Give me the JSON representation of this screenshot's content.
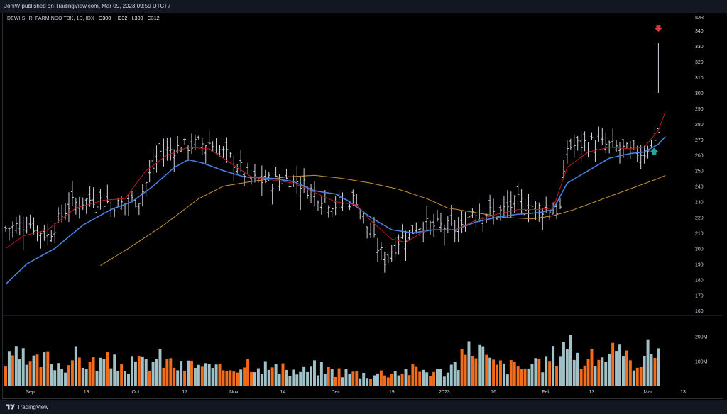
{
  "publish_line": "JoniW published on TradingView.com, Mar 09, 2023 09:59 UTC+7",
  "symbol_info": {
    "name": "DEWI SHRI FARMINDO TBK, 1D, IDX",
    "o_label": "O",
    "o_value": "300",
    "h_label": "H",
    "h_value": "332",
    "l_label": "L",
    "l_value": "300",
    "c_label": "C",
    "c_value": "312"
  },
  "footer_brand": "TradingView",
  "colors": {
    "candle": "#d1d4dc",
    "ma_red": "#b71c1c",
    "ma_blue": "#4a7fe0",
    "ma_orange": "#c59445",
    "vol_up": "#9fc1c7",
    "vol_down": "#f26c1c",
    "arrow_down": "#e5333f",
    "arrow_up": "#26a69a"
  },
  "chart_data": {
    "type": "bar",
    "subtype": "ohlc-bar-with-moving-averages-and-volume",
    "currency": "IDR",
    "price_axis": {
      "unit": "IDR",
      "ticks": [
        160,
        170,
        180,
        190,
        200,
        210,
        220,
        230,
        240,
        250,
        260,
        270,
        280,
        290,
        300,
        310,
        320,
        330,
        340
      ],
      "range": [
        156,
        346
      ]
    },
    "volume_axis": {
      "ticks": [
        "100M",
        "200M"
      ],
      "tick_values": [
        100,
        200
      ],
      "unit_millions": true,
      "range": [
        0,
        280
      ]
    },
    "x_axis_labels": [
      "Sep",
      "19",
      "Oct",
      "17",
      "Nov",
      "14",
      "Dec",
      "19",
      "2023",
      "16",
      "Feb",
      "13",
      "Mar",
      "13"
    ],
    "x_label_bar_index": [
      7,
      23,
      37,
      51,
      65,
      79,
      94,
      110,
      125,
      139,
      154,
      167,
      183,
      193
    ],
    "num_bars": 187,
    "price_keypoints": [
      [
        0,
        213
      ],
      [
        7,
        216
      ],
      [
        12,
        208
      ],
      [
        18,
        228
      ],
      [
        25,
        232
      ],
      [
        32,
        228
      ],
      [
        38,
        232
      ],
      [
        44,
        262
      ],
      [
        52,
        266
      ],
      [
        58,
        268
      ],
      [
        64,
        258
      ],
      [
        70,
        244
      ],
      [
        76,
        243
      ],
      [
        82,
        245
      ],
      [
        88,
        236
      ],
      [
        94,
        228
      ],
      [
        100,
        232
      ],
      [
        104,
        208
      ],
      [
        108,
        193
      ],
      [
        112,
        205
      ],
      [
        118,
        215
      ],
      [
        124,
        214
      ],
      [
        130,
        212
      ],
      [
        133,
        225
      ],
      [
        140,
        222
      ],
      [
        146,
        230
      ],
      [
        152,
        226
      ],
      [
        158,
        225
      ],
      [
        160,
        265
      ],
      [
        166,
        268
      ],
      [
        172,
        266
      ],
      [
        178,
        262
      ],
      [
        182,
        262
      ],
      [
        186,
        275
      ],
      [
        188,
        312
      ]
    ],
    "ma_fast_keypoints": [
      [
        0,
        200
      ],
      [
        5,
        208
      ],
      [
        12,
        212
      ],
      [
        20,
        226
      ],
      [
        28,
        231
      ],
      [
        34,
        232
      ],
      [
        40,
        250
      ],
      [
        46,
        260
      ],
      [
        52,
        265
      ],
      [
        58,
        264
      ],
      [
        64,
        255
      ],
      [
        70,
        246
      ],
      [
        76,
        244
      ],
      [
        82,
        242
      ],
      [
        88,
        236
      ],
      [
        94,
        230
      ],
      [
        100,
        228
      ],
      [
        104,
        218
      ],
      [
        110,
        206
      ],
      [
        114,
        204
      ],
      [
        120,
        212
      ],
      [
        128,
        212
      ],
      [
        134,
        218
      ],
      [
        140,
        222
      ],
      [
        146,
        225
      ],
      [
        152,
        225
      ],
      [
        156,
        226
      ],
      [
        160,
        252
      ],
      [
        166,
        262
      ],
      [
        172,
        265
      ],
      [
        178,
        264
      ],
      [
        182,
        265
      ],
      [
        186,
        276
      ],
      [
        188,
        288
      ]
    ],
    "ma_mid_keypoints": [
      [
        0,
        177
      ],
      [
        6,
        190
      ],
      [
        14,
        200
      ],
      [
        22,
        215
      ],
      [
        30,
        225
      ],
      [
        36,
        230
      ],
      [
        42,
        240
      ],
      [
        48,
        252
      ],
      [
        52,
        257
      ],
      [
        56,
        255
      ],
      [
        62,
        250
      ],
      [
        68,
        246
      ],
      [
        76,
        245
      ],
      [
        82,
        243
      ],
      [
        88,
        237
      ],
      [
        94,
        235
      ],
      [
        98,
        230
      ],
      [
        104,
        220
      ],
      [
        110,
        212
      ],
      [
        116,
        210
      ],
      [
        122,
        212
      ],
      [
        128,
        212
      ],
      [
        134,
        217
      ],
      [
        140,
        220
      ],
      [
        146,
        222
      ],
      [
        152,
        223
      ],
      [
        156,
        225
      ],
      [
        160,
        242
      ],
      [
        166,
        250
      ],
      [
        172,
        258
      ],
      [
        178,
        261
      ],
      [
        182,
        262
      ],
      [
        186,
        267
      ],
      [
        188,
        272
      ]
    ],
    "ma_slow_keypoints": [
      [
        27,
        189
      ],
      [
        35,
        200
      ],
      [
        45,
        215
      ],
      [
        55,
        232
      ],
      [
        62,
        240
      ],
      [
        70,
        243
      ],
      [
        80,
        246
      ],
      [
        88,
        247
      ],
      [
        96,
        245
      ],
      [
        104,
        242
      ],
      [
        112,
        238
      ],
      [
        120,
        232
      ],
      [
        126,
        226
      ],
      [
        134,
        223
      ],
      [
        142,
        220
      ],
      [
        150,
        219
      ],
      [
        156,
        221
      ],
      [
        162,
        225
      ],
      [
        168,
        230
      ],
      [
        174,
        235
      ],
      [
        180,
        240
      ],
      [
        186,
        245
      ],
      [
        188,
        247
      ]
    ],
    "volume_keypoints": [
      [
        0,
        95
      ],
      [
        4,
        120
      ],
      [
        7,
        85
      ],
      [
        12,
        110
      ],
      [
        16,
        85
      ],
      [
        20,
        115
      ],
      [
        24,
        90
      ],
      [
        28,
        100
      ],
      [
        34,
        80
      ],
      [
        40,
        95
      ],
      [
        44,
        110
      ],
      [
        50,
        75
      ],
      [
        54,
        90
      ],
      [
        60,
        60
      ],
      [
        66,
        85
      ],
      [
        70,
        100
      ],
      [
        76,
        70
      ],
      [
        80,
        60
      ],
      [
        84,
        55
      ],
      [
        88,
        75
      ],
      [
        94,
        60
      ],
      [
        100,
        50
      ],
      [
        104,
        45
      ],
      [
        108,
        55
      ],
      [
        112,
        60
      ],
      [
        118,
        65
      ],
      [
        124,
        55
      ],
      [
        130,
        105
      ],
      [
        134,
        180
      ],
      [
        138,
        90
      ],
      [
        142,
        80
      ],
      [
        148,
        75
      ],
      [
        152,
        80
      ],
      [
        156,
        120
      ],
      [
        160,
        200
      ],
      [
        164,
        95
      ],
      [
        168,
        110
      ],
      [
        172,
        140
      ],
      [
        176,
        110
      ],
      [
        180,
        105
      ],
      [
        184,
        150
      ],
      [
        186,
        165
      ],
      [
        188,
        85
      ]
    ],
    "series": [
      {
        "type": "ohlc"
      },
      {
        "type": "moving-average",
        "style": "red"
      },
      {
        "type": "moving-average",
        "style": "blue"
      },
      {
        "type": "moving-average",
        "style": "orange"
      },
      {
        "type": "volume"
      }
    ],
    "annotations": [
      {
        "type": "arrow-down",
        "color": "red",
        "near_price": 340
      },
      {
        "type": "arrow-up",
        "color": "teal",
        "near_price": 262
      }
    ]
  }
}
